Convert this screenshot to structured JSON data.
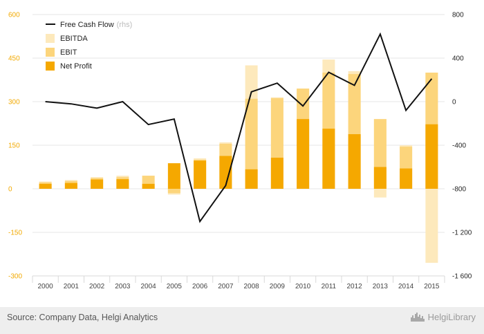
{
  "chart_data": {
    "type": "bar",
    "categories": [
      "2000",
      "2001",
      "2002",
      "2003",
      "2004",
      "2005",
      "2006",
      "2007",
      "2008",
      "2009",
      "2010",
      "2011",
      "2012",
      "2013",
      "2014",
      "2015"
    ],
    "series": [
      {
        "name": "EBITDA",
        "kind": "bar",
        "color": "#fde9bc",
        "values": [
          25,
          30,
          40,
          45,
          45,
          0,
          105,
          160,
          425,
          315,
          345,
          445,
          405,
          240,
          150,
          400
        ],
        "negative": [
          0,
          0,
          0,
          0,
          0,
          -20,
          0,
          0,
          0,
          0,
          0,
          0,
          0,
          -30,
          0,
          -255
        ]
      },
      {
        "name": "EBIT",
        "kind": "bar",
        "color": "#fcd57c",
        "values": [
          22,
          27,
          37,
          40,
          45,
          0,
          100,
          155,
          310,
          312,
          345,
          400,
          395,
          240,
          145,
          400
        ],
        "negative": [
          0,
          0,
          0,
          0,
          0,
          -15,
          0,
          0,
          0,
          0,
          0,
          0,
          0,
          0,
          0,
          0
        ]
      },
      {
        "name": "Net Profit",
        "kind": "bar",
        "color": "#f5a800",
        "values": [
          17,
          20,
          32,
          33,
          17,
          88,
          97,
          113,
          67,
          107,
          240,
          207,
          188,
          75,
          70,
          222
        ],
        "negative": [
          0,
          0,
          0,
          0,
          0,
          0,
          0,
          0,
          0,
          0,
          0,
          0,
          0,
          0,
          0,
          0
        ]
      },
      {
        "name": "Free Cash Flow",
        "kind": "line",
        "axis": "rhs",
        "color": "#111111",
        "values": [
          0,
          -20,
          -60,
          0,
          -210,
          -160,
          -1100,
          -770,
          90,
          170,
          -40,
          270,
          150,
          620,
          -80,
          210
        ]
      }
    ],
    "legend": [
      {
        "label": "Free Cash Flow",
        "suffix": "(rhs)",
        "symbol": "line"
      },
      {
        "label": "EBITDA",
        "suffix": "",
        "symbol": "box"
      },
      {
        "label": "EBIT",
        "suffix": "",
        "symbol": "box"
      },
      {
        "label": "Net Profit",
        "suffix": "",
        "symbol": "box"
      }
    ],
    "legend_position": "top-left",
    "ylim": [
      -300,
      600
    ],
    "yticks": [
      "600",
      "450",
      "300",
      "150",
      "0",
      "-150",
      "-300"
    ],
    "y2lim": [
      -1600,
      800
    ],
    "y2ticks": [
      "800",
      "400",
      "0",
      "-400",
      "-800",
      "-1 200",
      "-1 600"
    ],
    "grid": true
  },
  "footer": {
    "source": "Source: Company Data, Helgi Analytics",
    "brand": "HelgiLibrary",
    "brand_icon": "city-skyline-icon"
  }
}
